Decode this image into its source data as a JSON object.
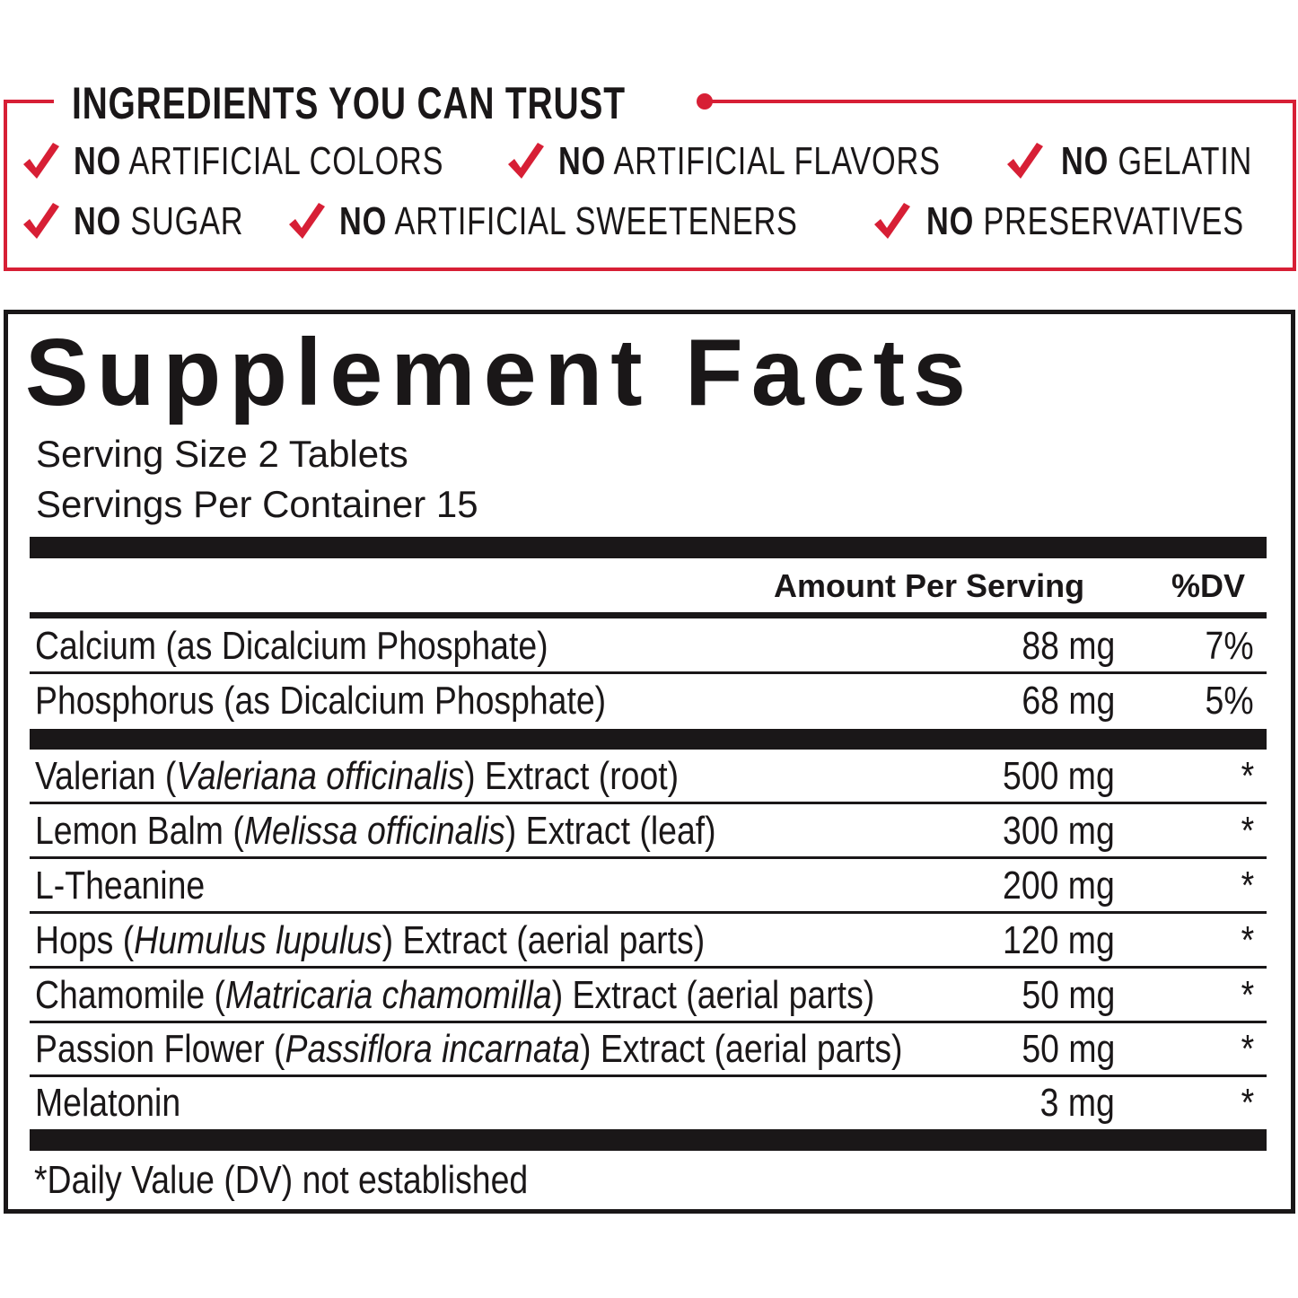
{
  "colors": {
    "accent": "#d71f35",
    "text": "#1a1718"
  },
  "trust": {
    "title": "INGREDIENTS YOU CAN TRUST",
    "claims": [
      {
        "bold": "NO",
        "text": "ARTIFICIAL COLORS"
      },
      {
        "bold": "NO",
        "text": "ARTIFICIAL FLAVORS"
      },
      {
        "bold": "NO",
        "text": "GELATIN"
      },
      {
        "bold": "NO",
        "text": "SUGAR"
      },
      {
        "bold": "NO",
        "text": "ARTIFICIAL SWEETENERS"
      },
      {
        "bold": "NO",
        "text": "PRESERVATIVES"
      }
    ],
    "icon": "red-checkmark"
  },
  "facts": {
    "title": "Supplement Facts",
    "serving_size": "Serving Size 2 Tablets",
    "servings_per_container": "Servings Per Container 15",
    "header_amount": "Amount Per Serving",
    "header_dv": "%DV",
    "group1": [
      {
        "pre": "Calcium (as Dicalcium Phosphate)",
        "italic": "",
        "post": "",
        "amount": "88 mg",
        "dv": "7%"
      },
      {
        "pre": "Phosphorus (as Dicalcium Phosphate)",
        "italic": "",
        "post": "",
        "amount": "68 mg",
        "dv": "5%"
      }
    ],
    "group2": [
      {
        "pre": "Valerian (",
        "italic": "Valeriana officinalis",
        "post": ") Extract (root)",
        "amount": "500 mg",
        "dv": "*"
      },
      {
        "pre": "Lemon Balm (",
        "italic": "Melissa officinalis",
        "post": ") Extract (leaf)",
        "amount": "300 mg",
        "dv": "*"
      },
      {
        "pre": "L-Theanine",
        "italic": "",
        "post": "",
        "amount": "200 mg",
        "dv": "*"
      },
      {
        "pre": "Hops (",
        "italic": "Humulus lupulus",
        "post": ") Extract (aerial parts)",
        "amount": "120 mg",
        "dv": "*"
      },
      {
        "pre": "Chamomile (",
        "italic": "Matricaria chamomilla",
        "post": ") Extract (aerial parts)",
        "amount": "50 mg",
        "dv": "*"
      },
      {
        "pre": "Passion Flower (",
        "italic": "Passiflora incarnata",
        "post": ") Extract (aerial parts)",
        "amount": "50 mg",
        "dv": "*"
      },
      {
        "pre": "Melatonin",
        "italic": "",
        "post": "",
        "amount": "3 mg",
        "dv": "*"
      }
    ],
    "footnote": "*Daily Value (DV) not established"
  }
}
